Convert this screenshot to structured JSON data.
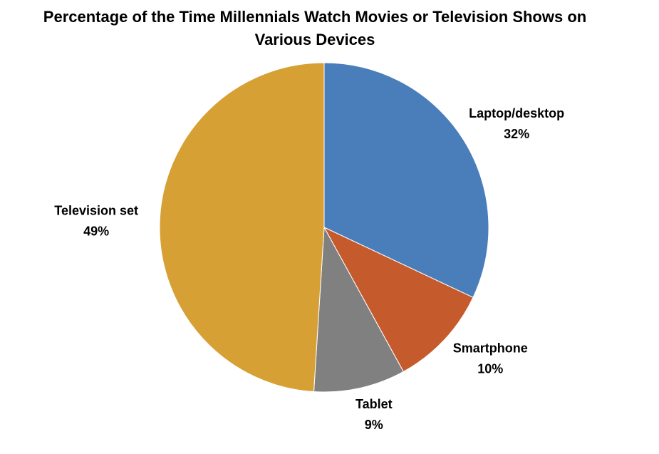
{
  "chart_data": {
    "type": "pie",
    "title": "Percentage of the Time Millennials Watch Movies or Television Shows on Various Devices",
    "categories": [
      "Laptop/desktop",
      "Smartphone",
      "Tablet",
      "Television set"
    ],
    "values": [
      32,
      10,
      9,
      49
    ],
    "value_labels": [
      "32%",
      "10%",
      "9%",
      "49%"
    ],
    "colors": [
      "#4a7ebb",
      "#c55a2c",
      "#808080",
      "#d7a034"
    ]
  }
}
